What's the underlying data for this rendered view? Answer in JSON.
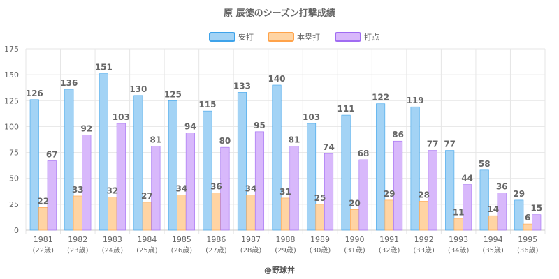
{
  "chart_data": {
    "type": "bar",
    "title": "原 辰徳のシーズン打撃成績",
    "categories": [
      "1981",
      "1982",
      "1983",
      "1984",
      "1985",
      "1986",
      "1987",
      "1988",
      "1989",
      "1990",
      "1991",
      "1992",
      "1993",
      "1994",
      "1995"
    ],
    "sub_labels": [
      "(22歳)",
      "(23歳)",
      "(24歳)",
      "(25歳)",
      "(26歳)",
      "(27歳)",
      "(28歳)",
      "(29歳)",
      "(30歳)",
      "(31歳)",
      "(32歳)",
      "(33歳)",
      "(34歳)",
      "(35歳)",
      "(36歳)"
    ],
    "series": [
      {
        "name": "安打",
        "values": [
          126,
          136,
          151,
          130,
          125,
          115,
          133,
          140,
          103,
          111,
          122,
          119,
          77,
          58,
          29
        ],
        "fill": "#a3d3f5",
        "stroke": "#3ea3ea"
      },
      {
        "name": "本塁打",
        "values": [
          22,
          33,
          32,
          27,
          34,
          36,
          34,
          31,
          25,
          20,
          29,
          28,
          11,
          14,
          6
        ],
        "fill": "#ffd4a3",
        "stroke": "#ffa34a"
      },
      {
        "name": "打点",
        "values": [
          67,
          92,
          103,
          81,
          94,
          80,
          95,
          81,
          74,
          68,
          86,
          77,
          44,
          36,
          15
        ],
        "fill": "#d8b8fb",
        "stroke": "#a06cf2"
      }
    ],
    "ylim": [
      0,
      175
    ],
    "yticks": [
      0,
      25,
      50,
      75,
      100,
      125,
      150,
      175
    ],
    "grid": true,
    "legend": "top"
  },
  "credit": "@野球丼"
}
